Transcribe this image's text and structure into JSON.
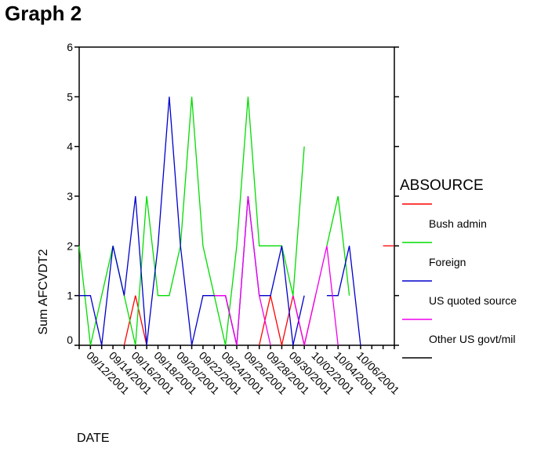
{
  "page": {
    "title": "Graph 2"
  },
  "chart_data": {
    "type": "line",
    "xlabel": "DATE",
    "ylabel": "Sum AFCVDT2",
    "ylim": [
      0,
      6
    ],
    "y_ticks": [
      0,
      1,
      2,
      3,
      4,
      5,
      6
    ],
    "x_tick_labels": [
      "09/12/2001",
      "09/14/2001",
      "09/16/2001",
      "09/18/2001",
      "09/20/2001",
      "09/22/2001",
      "09/24/2001",
      "09/26/2001",
      "09/28/2001",
      "09/30/2001",
      "10/02/2001",
      "10/04/2001",
      "10/06/2001"
    ],
    "legend": {
      "title": "ABSOURCE",
      "position": "right"
    },
    "series": [
      {
        "name": "",
        "color": "#ff0000",
        "values": [
          null,
          null,
          null,
          null,
          0,
          1,
          0,
          null,
          null,
          null,
          null,
          null,
          null,
          1,
          0,
          null,
          0,
          1,
          0,
          1,
          0,
          1,
          null,
          2,
          null,
          2,
          null,
          2,
          2
        ]
      },
      {
        "name": "Bush admin",
        "color": "#00dd00",
        "values": [
          2,
          0,
          1,
          2,
          1,
          0,
          3,
          1,
          1,
          2,
          5,
          2,
          1,
          0,
          2,
          5,
          2,
          2,
          2,
          1,
          4,
          null,
          2,
          3,
          1,
          null,
          null,
          null,
          null
        ]
      },
      {
        "name": "Foreign",
        "color": "#0000cc",
        "values": [
          1,
          1,
          0,
          2,
          1,
          3,
          0,
          2,
          5,
          2,
          0,
          1,
          1,
          1,
          0,
          3,
          1,
          1,
          2,
          0,
          1,
          null,
          1,
          1,
          2,
          0,
          null,
          null,
          null
        ]
      },
      {
        "name": "US quoted source",
        "color": "#ee00ee",
        "values": [
          null,
          null,
          null,
          null,
          null,
          null,
          null,
          null,
          null,
          0,
          null,
          null,
          1,
          1,
          0,
          3,
          1,
          0,
          null,
          1,
          0,
          1,
          2,
          0,
          null,
          null,
          null,
          null,
          null
        ]
      },
      {
        "name": "Other US govt/mil",
        "color": "#000000",
        "values": []
      }
    ]
  }
}
